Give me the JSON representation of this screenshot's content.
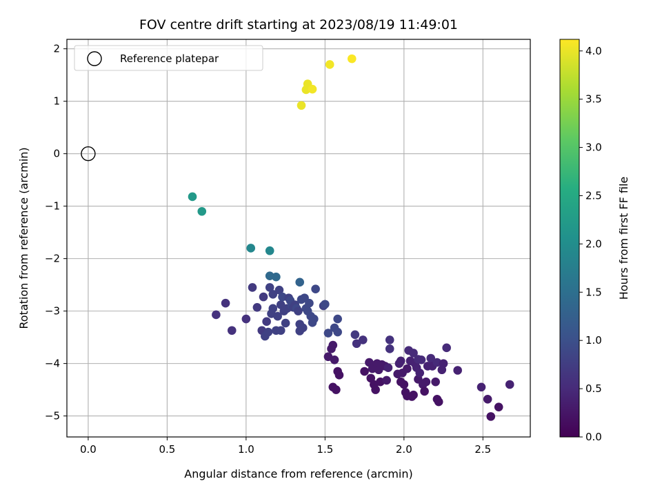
{
  "chart_data": {
    "type": "scatter",
    "title": "FOV centre drift starting at 2023/08/19 11:49:01",
    "xlabel": "Angular distance from reference (arcmin)",
    "ylabel": "Rotation from reference (arcmin)",
    "xlim": [
      -0.135,
      2.8
    ],
    "ylim": [
      -5.4,
      2.18
    ],
    "xticks": [
      0.0,
      0.5,
      1.0,
      1.5,
      2.0,
      2.5
    ],
    "xtick_labels": [
      "0.0",
      "0.5",
      "1.0",
      "1.5",
      "2.0",
      "2.5"
    ],
    "yticks": [
      -5,
      -4,
      -3,
      -2,
      -1,
      0,
      1,
      2
    ],
    "ytick_labels": [
      "−5",
      "−4",
      "−3",
      "−2",
      "−1",
      "0",
      "1",
      "2"
    ],
    "grid": true,
    "legend": {
      "placement": "top-left",
      "entries": [
        "Reference platepar"
      ]
    },
    "reference_point": {
      "x": 0.0,
      "y": 0.0
    },
    "colorbar": {
      "label": "Hours from first FF file",
      "range": [
        0.0,
        4.12
      ],
      "ticks": [
        0.0,
        0.5,
        1.0,
        1.5,
        2.0,
        2.5,
        3.0,
        3.5,
        4.0
      ],
      "tick_labels": [
        "0.0",
        "0.5",
        "1.0",
        "1.5",
        "2.0",
        "2.5",
        "3.0",
        "3.5",
        "4.0"
      ],
      "colormap": "viridis"
    },
    "points": [
      {
        "x": 1.35,
        "y": 0.92,
        "c": 4.0
      },
      {
        "x": 1.38,
        "y": 1.22,
        "c": 4.0
      },
      {
        "x": 1.39,
        "y": 1.33,
        "c": 4.0
      },
      {
        "x": 1.42,
        "y": 1.23,
        "c": 4.05
      },
      {
        "x": 1.53,
        "y": 1.7,
        "c": 4.05
      },
      {
        "x": 1.67,
        "y": 1.81,
        "c": 4.1
      },
      {
        "x": 0.66,
        "y": -0.82,
        "c": 2.2
      },
      {
        "x": 0.72,
        "y": -1.1,
        "c": 2.2
      },
      {
        "x": 1.03,
        "y": -1.8,
        "c": 1.9
      },
      {
        "x": 1.15,
        "y": -1.85,
        "c": 1.9
      },
      {
        "x": 1.15,
        "y": -2.33,
        "c": 1.4
      },
      {
        "x": 1.19,
        "y": -2.35,
        "c": 1.4
      },
      {
        "x": 1.34,
        "y": -2.45,
        "c": 1.3
      },
      {
        "x": 0.81,
        "y": -3.07,
        "c": 0.6
      },
      {
        "x": 0.87,
        "y": -2.85,
        "c": 0.6
      },
      {
        "x": 0.91,
        "y": -3.37,
        "c": 0.6
      },
      {
        "x": 1.0,
        "y": -3.15,
        "c": 0.6
      },
      {
        "x": 1.04,
        "y": -2.55,
        "c": 0.7
      },
      {
        "x": 1.07,
        "y": -2.93,
        "c": 0.7
      },
      {
        "x": 1.1,
        "y": -3.37,
        "c": 0.7
      },
      {
        "x": 1.11,
        "y": -2.73,
        "c": 0.7
      },
      {
        "x": 1.12,
        "y": -3.48,
        "c": 0.8
      },
      {
        "x": 1.13,
        "y": -3.2,
        "c": 0.7
      },
      {
        "x": 1.14,
        "y": -3.4,
        "c": 0.8
      },
      {
        "x": 1.15,
        "y": -2.55,
        "c": 0.8
      },
      {
        "x": 1.16,
        "y": -3.05,
        "c": 0.8
      },
      {
        "x": 1.17,
        "y": -2.95,
        "c": 0.8
      },
      {
        "x": 1.17,
        "y": -2.68,
        "c": 0.8
      },
      {
        "x": 1.19,
        "y": -3.37,
        "c": 0.8
      },
      {
        "x": 1.2,
        "y": -3.1,
        "c": 0.8
      },
      {
        "x": 1.21,
        "y": -2.6,
        "c": 0.8
      },
      {
        "x": 1.22,
        "y": -2.88,
        "c": 0.8
      },
      {
        "x": 1.22,
        "y": -3.37,
        "c": 0.8
      },
      {
        "x": 1.23,
        "y": -2.73,
        "c": 0.9
      },
      {
        "x": 1.24,
        "y": -3.0,
        "c": 0.8
      },
      {
        "x": 1.25,
        "y": -3.23,
        "c": 0.8
      },
      {
        "x": 1.26,
        "y": -2.95,
        "c": 0.8
      },
      {
        "x": 1.27,
        "y": -2.75,
        "c": 0.8
      },
      {
        "x": 1.28,
        "y": -2.8,
        "c": 0.9
      },
      {
        "x": 1.29,
        "y": -2.9,
        "c": 0.9
      },
      {
        "x": 1.3,
        "y": -2.93,
        "c": 0.8
      },
      {
        "x": 1.31,
        "y": -2.88,
        "c": 0.8
      },
      {
        "x": 1.32,
        "y": -2.95,
        "c": 0.9
      },
      {
        "x": 1.33,
        "y": -3.0,
        "c": 0.8
      },
      {
        "x": 1.34,
        "y": -3.25,
        "c": 0.8
      },
      {
        "x": 1.34,
        "y": -3.38,
        "c": 0.8
      },
      {
        "x": 1.35,
        "y": -2.78,
        "c": 0.9
      },
      {
        "x": 1.36,
        "y": -3.32,
        "c": 0.8
      },
      {
        "x": 1.37,
        "y": -2.75,
        "c": 0.9
      },
      {
        "x": 1.38,
        "y": -2.95,
        "c": 0.9
      },
      {
        "x": 1.39,
        "y": -3.0,
        "c": 0.9
      },
      {
        "x": 1.4,
        "y": -2.85,
        "c": 0.9
      },
      {
        "x": 1.41,
        "y": -3.1,
        "c": 0.9
      },
      {
        "x": 1.42,
        "y": -3.22,
        "c": 0.9
      },
      {
        "x": 1.43,
        "y": -3.15,
        "c": 0.9
      },
      {
        "x": 1.44,
        "y": -2.58,
        "c": 0.9
      },
      {
        "x": 1.49,
        "y": -2.9,
        "c": 0.8
      },
      {
        "x": 1.5,
        "y": -2.87,
        "c": 0.9
      },
      {
        "x": 1.52,
        "y": -3.42,
        "c": 0.9
      },
      {
        "x": 1.56,
        "y": -3.32,
        "c": 0.9
      },
      {
        "x": 1.58,
        "y": -3.15,
        "c": 0.9
      },
      {
        "x": 1.58,
        "y": -3.4,
        "c": 0.9
      },
      {
        "x": 1.52,
        "y": -3.87,
        "c": 0.3
      },
      {
        "x": 1.54,
        "y": -3.72,
        "c": 0.3
      },
      {
        "x": 1.55,
        "y": -3.65,
        "c": 0.3
      },
      {
        "x": 1.56,
        "y": -3.93,
        "c": 0.3
      },
      {
        "x": 1.55,
        "y": -4.45,
        "c": 0.2
      },
      {
        "x": 1.57,
        "y": -4.5,
        "c": 0.2
      },
      {
        "x": 1.58,
        "y": -4.15,
        "c": 0.2
      },
      {
        "x": 1.59,
        "y": -4.22,
        "c": 0.2
      },
      {
        "x": 1.69,
        "y": -3.45,
        "c": 0.7
      },
      {
        "x": 1.7,
        "y": -3.62,
        "c": 0.6
      },
      {
        "x": 1.74,
        "y": -3.55,
        "c": 0.6
      },
      {
        "x": 1.75,
        "y": -4.15,
        "c": 0.2
      },
      {
        "x": 1.78,
        "y": -3.98,
        "c": 0.3
      },
      {
        "x": 1.79,
        "y": -4.28,
        "c": 0.2
      },
      {
        "x": 1.8,
        "y": -4.1,
        "c": 0.3
      },
      {
        "x": 1.81,
        "y": -4.4,
        "c": 0.2
      },
      {
        "x": 1.82,
        "y": -4.5,
        "c": 0.2
      },
      {
        "x": 1.83,
        "y": -4.0,
        "c": 0.3
      },
      {
        "x": 1.84,
        "y": -4.12,
        "c": 0.3
      },
      {
        "x": 1.85,
        "y": -4.35,
        "c": 0.2
      },
      {
        "x": 1.86,
        "y": -4.02,
        "c": 0.3
      },
      {
        "x": 1.88,
        "y": -4.05,
        "c": 0.3
      },
      {
        "x": 1.89,
        "y": -4.32,
        "c": 0.3
      },
      {
        "x": 1.9,
        "y": -4.08,
        "c": 0.4
      },
      {
        "x": 1.91,
        "y": -3.55,
        "c": 0.6
      },
      {
        "x": 1.91,
        "y": -3.72,
        "c": 0.6
      },
      {
        "x": 1.96,
        "y": -4.2,
        "c": 0.3
      },
      {
        "x": 1.97,
        "y": -4.0,
        "c": 0.4
      },
      {
        "x": 1.98,
        "y": -3.95,
        "c": 0.4
      },
      {
        "x": 1.98,
        "y": -4.35,
        "c": 0.2
      },
      {
        "x": 1.99,
        "y": -4.18,
        "c": 0.3
      },
      {
        "x": 2.0,
        "y": -4.4,
        "c": 0.2
      },
      {
        "x": 2.01,
        "y": -4.55,
        "c": 0.2
      },
      {
        "x": 2.02,
        "y": -4.1,
        "c": 0.3
      },
      {
        "x": 2.02,
        "y": -4.62,
        "c": 0.2
      },
      {
        "x": 2.03,
        "y": -3.75,
        "c": 0.5
      },
      {
        "x": 2.04,
        "y": -3.95,
        "c": 0.4
      },
      {
        "x": 2.05,
        "y": -4.63,
        "c": 0.2
      },
      {
        "x": 2.06,
        "y": -3.8,
        "c": 0.5
      },
      {
        "x": 2.06,
        "y": -4.6,
        "c": 0.2
      },
      {
        "x": 2.07,
        "y": -4.0,
        "c": 0.4
      },
      {
        "x": 2.08,
        "y": -4.08,
        "c": 0.4
      },
      {
        "x": 2.09,
        "y": -3.92,
        "c": 0.5
      },
      {
        "x": 2.09,
        "y": -4.3,
        "c": 0.3
      },
      {
        "x": 2.1,
        "y": -4.18,
        "c": 0.4
      },
      {
        "x": 2.11,
        "y": -3.93,
        "c": 0.5
      },
      {
        "x": 2.12,
        "y": -4.4,
        "c": 0.3
      },
      {
        "x": 2.13,
        "y": -4.53,
        "c": 0.2
      },
      {
        "x": 2.14,
        "y": -4.35,
        "c": 0.3
      },
      {
        "x": 2.15,
        "y": -4.05,
        "c": 0.4
      },
      {
        "x": 2.17,
        "y": -3.9,
        "c": 0.5
      },
      {
        "x": 2.18,
        "y": -4.05,
        "c": 0.4
      },
      {
        "x": 2.2,
        "y": -4.35,
        "c": 0.3
      },
      {
        "x": 2.21,
        "y": -3.98,
        "c": 0.5
      },
      {
        "x": 2.21,
        "y": -4.68,
        "c": 0.2
      },
      {
        "x": 2.22,
        "y": -4.73,
        "c": 0.2
      },
      {
        "x": 2.24,
        "y": -4.12,
        "c": 0.4
      },
      {
        "x": 2.25,
        "y": -4.0,
        "c": 0.4
      },
      {
        "x": 2.27,
        "y": -3.7,
        "c": 0.5
      },
      {
        "x": 2.34,
        "y": -4.13,
        "c": 0.4
      },
      {
        "x": 2.49,
        "y": -4.45,
        "c": 0.4
      },
      {
        "x": 2.53,
        "y": -4.68,
        "c": 0.3
      },
      {
        "x": 2.55,
        "y": -5.01,
        "c": 0.2
      },
      {
        "x": 2.6,
        "y": -4.83,
        "c": 0.2
      },
      {
        "x": 2.67,
        "y": -4.4,
        "c": 0.4
      }
    ]
  }
}
